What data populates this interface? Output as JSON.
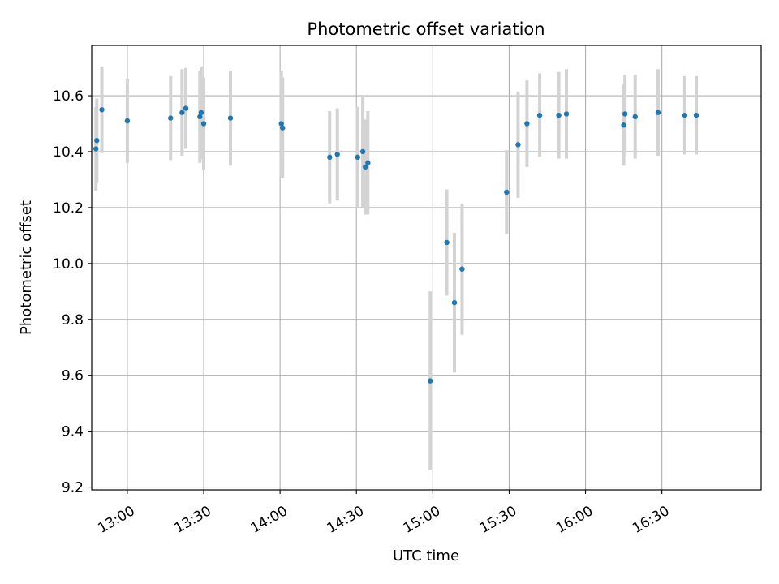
{
  "chart_data": {
    "type": "scatter",
    "title": "Photometric offset variation",
    "xlabel": "UTC time",
    "ylabel": "Photometric offset",
    "xlim": [
      "12:46",
      "17:09"
    ],
    "ylim": [
      9.19,
      10.78
    ],
    "x_ticks": [
      "13:00",
      "13:30",
      "14:00",
      "14:30",
      "15:00",
      "15:30",
      "16:00",
      "16:30"
    ],
    "y_ticks": [
      "9.2",
      "9.4",
      "9.6",
      "9.8",
      "10.0",
      "10.2",
      "10.4",
      "10.6"
    ],
    "grid": true,
    "series": [
      {
        "color": "#1f77b4",
        "errorbar_color": "#d3d3d3",
        "points": [
          {
            "t": "12:47:40",
            "y": 10.41,
            "err": 0.15
          },
          {
            "t": "12:48:00",
            "y": 10.44,
            "err": 0.15
          },
          {
            "t": "12:50:00",
            "y": 10.55,
            "err": 0.155
          },
          {
            "t": "13:00:00",
            "y": 10.51,
            "err": 0.15
          },
          {
            "t": "13:17:00",
            "y": 10.52,
            "err": 0.15
          },
          {
            "t": "13:21:30",
            "y": 10.54,
            "err": 0.155
          },
          {
            "t": "13:23:00",
            "y": 10.555,
            "err": 0.145
          },
          {
            "t": "13:28:30",
            "y": 10.525,
            "err": 0.165
          },
          {
            "t": "13:29:00",
            "y": 10.54,
            "err": 0.165
          },
          {
            "t": "13:30:00",
            "y": 10.5,
            "err": 0.165
          },
          {
            "t": "13:40:30",
            "y": 10.52,
            "err": 0.17
          },
          {
            "t": "14:00:30",
            "y": 10.5,
            "err": 0.19
          },
          {
            "t": "14:01:00",
            "y": 10.485,
            "err": 0.18
          },
          {
            "t": "14:19:30",
            "y": 10.38,
            "err": 0.165
          },
          {
            "t": "14:22:30",
            "y": 10.39,
            "err": 0.165
          },
          {
            "t": "14:30:30",
            "y": 10.38,
            "err": 0.18
          },
          {
            "t": "14:32:30",
            "y": 10.4,
            "err": 0.2
          },
          {
            "t": "14:33:30",
            "y": 10.345,
            "err": 0.17
          },
          {
            "t": "14:34:30",
            "y": 10.36,
            "err": 0.185
          },
          {
            "t": "14:59:00",
            "y": 9.58,
            "err": 0.32
          },
          {
            "t": "15:05:30",
            "y": 10.075,
            "err": 0.19
          },
          {
            "t": "15:08:30",
            "y": 9.86,
            "err": 0.25
          },
          {
            "t": "15:11:30",
            "y": 9.98,
            "err": 0.235
          },
          {
            "t": "15:29:00",
            "y": 10.255,
            "err": 0.15
          },
          {
            "t": "15:33:30",
            "y": 10.425,
            "err": 0.19
          },
          {
            "t": "15:37:00",
            "y": 10.5,
            "err": 0.155
          },
          {
            "t": "15:42:00",
            "y": 10.53,
            "err": 0.15
          },
          {
            "t": "15:49:30",
            "y": 10.53,
            "err": 0.155
          },
          {
            "t": "15:52:30",
            "y": 10.535,
            "err": 0.16
          },
          {
            "t": "16:15:00",
            "y": 10.495,
            "err": 0.145
          },
          {
            "t": "16:15:30",
            "y": 10.535,
            "err": 0.14
          },
          {
            "t": "16:19:30",
            "y": 10.525,
            "err": 0.15
          },
          {
            "t": "16:28:30",
            "y": 10.54,
            "err": 0.155
          },
          {
            "t": "16:39:00",
            "y": 10.53,
            "err": 0.14
          },
          {
            "t": "16:43:30",
            "y": 10.53,
            "err": 0.14
          }
        ]
      }
    ]
  }
}
